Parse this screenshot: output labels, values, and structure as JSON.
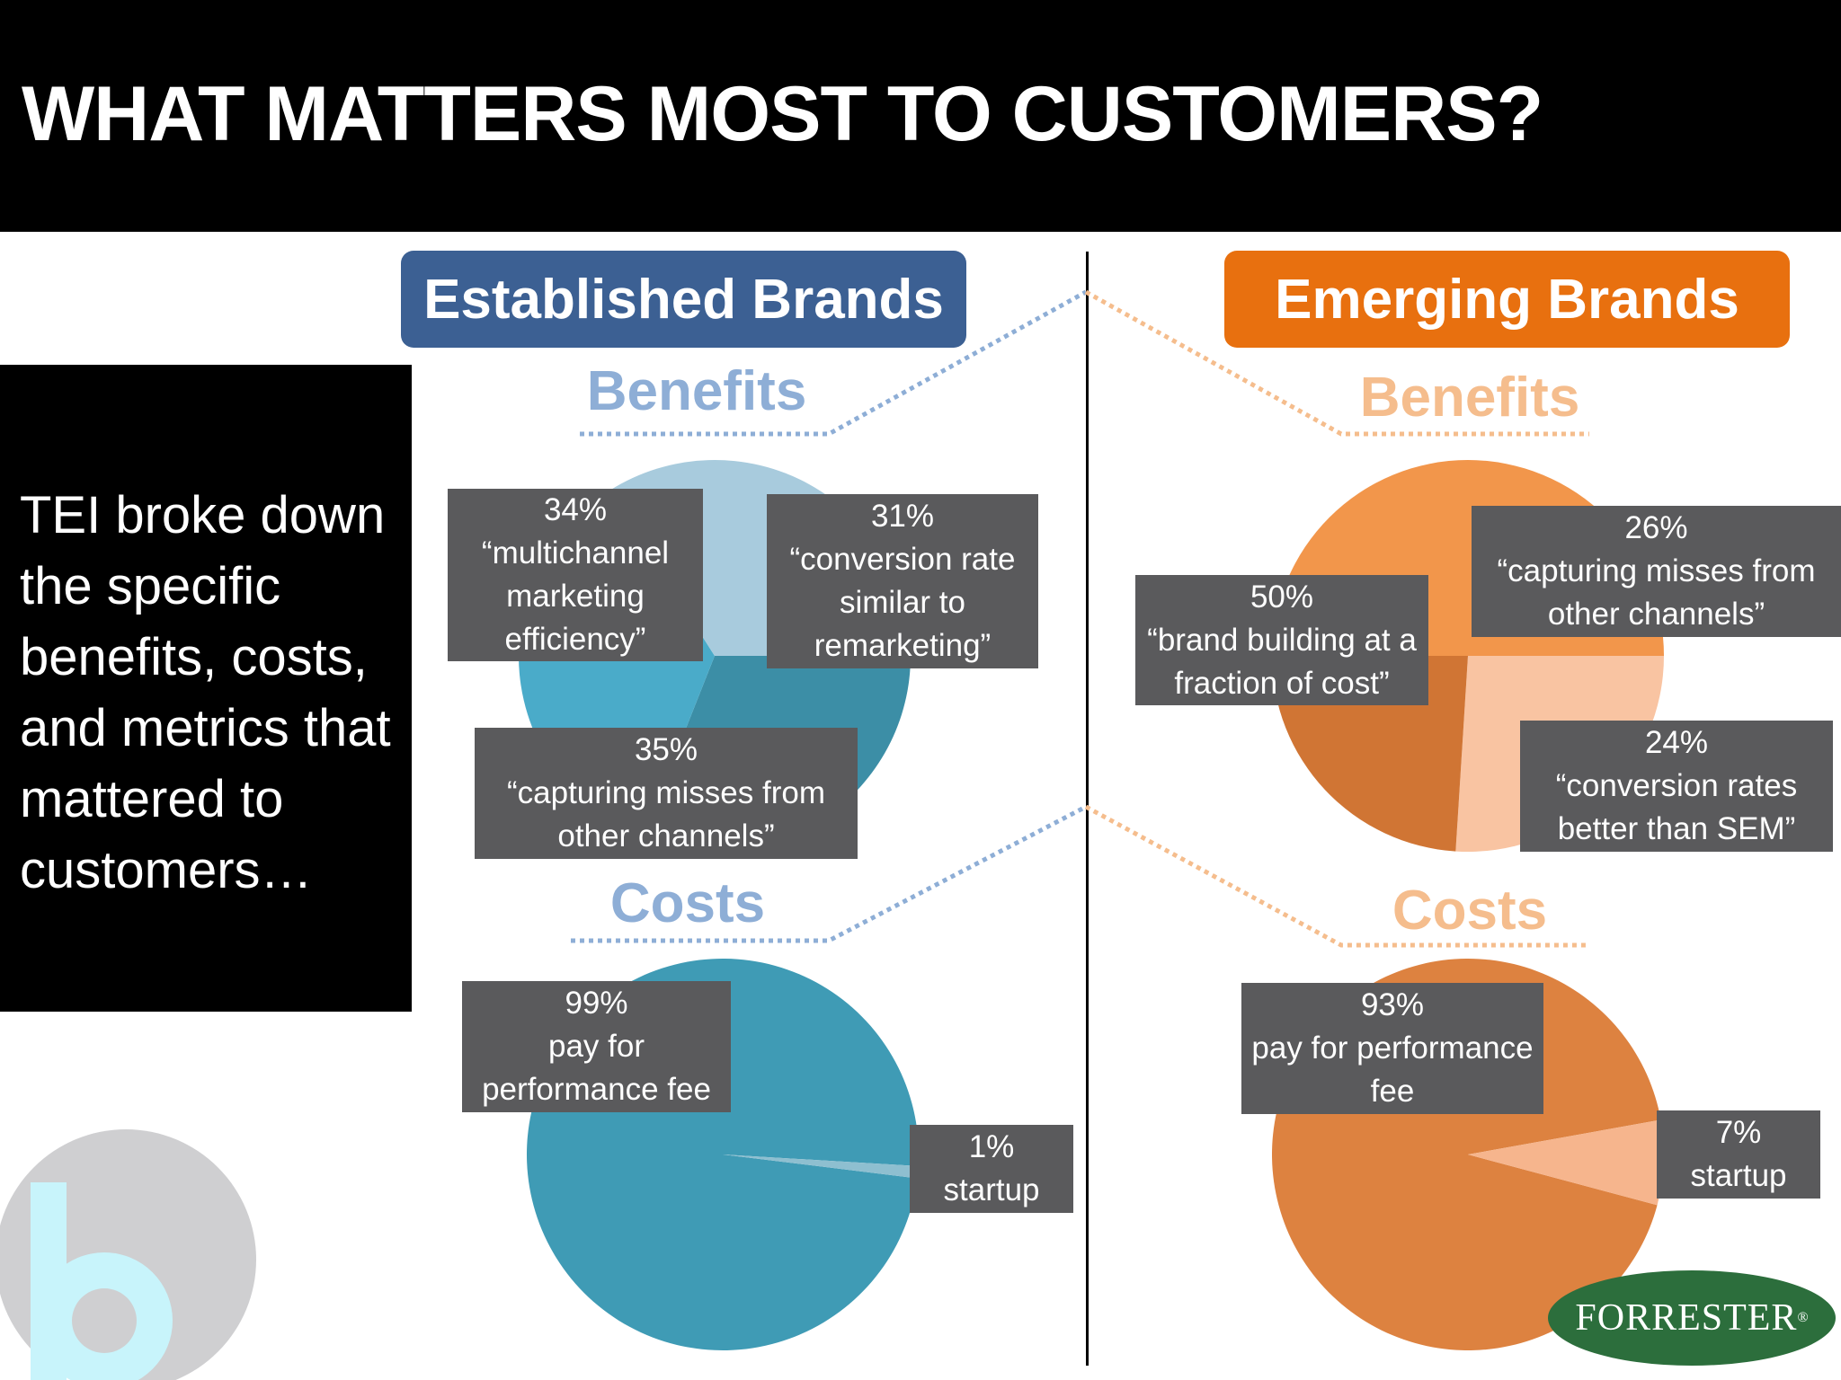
{
  "slide": {
    "title": "WHAT MATTERS MOST TO CUSTOMERS?",
    "side_text": "TEI broke down the specific benefits, costs, and metrics that mattered to customers…",
    "logo_text": "FORRESTER",
    "logo_mark": "®"
  },
  "colors": {
    "established_header": "#3c6093",
    "emerging_header": "#e8700f",
    "established_heading": "#8eaed6",
    "emerging_heading": "#f5bd8d",
    "label_bg": "#5a5a5c"
  },
  "groups": {
    "established": {
      "header": "Established Brands"
    },
    "emerging": {
      "header": "Emerging Brands"
    }
  },
  "chart_data": [
    {
      "type": "pie",
      "group": "Established Brands",
      "title": "Benefits",
      "slices": [
        {
          "value": 31,
          "pct_label": "31%",
          "lines": [
            "“conversion rate",
            "similar to",
            "remarketing”"
          ],
          "color": "#3c8ea6"
        },
        {
          "value": 35,
          "pct_label": "35%",
          "lines": [
            "“capturing misses from",
            "other channels”"
          ],
          "color": "#4aabc9"
        },
        {
          "value": 34,
          "pct_label": "34%",
          "lines": [
            "“multichannel",
            "marketing",
            "efficiency”"
          ],
          "color": "#a8cbdd"
        }
      ]
    },
    {
      "type": "pie",
      "group": "Established Brands",
      "title": "Costs",
      "slices": [
        {
          "value": 99,
          "pct_label": "99%",
          "lines": [
            "pay for",
            "performance fee"
          ],
          "color": "#3f9bb5"
        },
        {
          "value": 1,
          "pct_label": "1%",
          "lines": [
            "startup"
          ],
          "color": "#8ebfd0"
        }
      ]
    },
    {
      "type": "pie",
      "group": "Emerging Brands",
      "title": "Benefits",
      "slices": [
        {
          "value": 26,
          "pct_label": "26%",
          "lines": [
            "“capturing misses from",
            "other channels”"
          ],
          "color": "#f9c4a2"
        },
        {
          "value": 24,
          "pct_label": "24%",
          "lines": [
            "“conversion rates",
            "better than SEM”"
          ],
          "color": "#d07534"
        },
        {
          "value": 50,
          "pct_label": "50%",
          "lines": [
            "“brand building at a",
            "fraction of cost”"
          ],
          "color": "#f2964b"
        }
      ]
    },
    {
      "type": "pie",
      "group": "Emerging Brands",
      "title": "Costs",
      "slices": [
        {
          "value": 93,
          "pct_label": "93%",
          "lines": [
            "pay for performance",
            "fee"
          ],
          "color": "#dd8240"
        },
        {
          "value": 7,
          "pct_label": "7%",
          "lines": [
            "startup"
          ],
          "color": "#f6b58d"
        }
      ]
    }
  ]
}
